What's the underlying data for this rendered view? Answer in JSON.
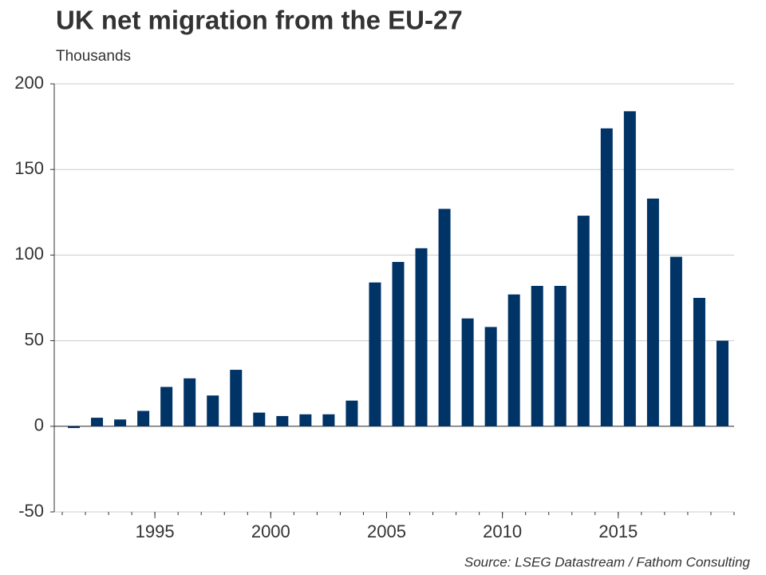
{
  "chart_data": {
    "type": "bar",
    "title": "UK net migration from the EU-27",
    "subtitle": "Thousands",
    "source": "Source: LSEG Datastream / Fathom Consulting",
    "categories": [
      null,
      null,
      null,
      null,
      "1995",
      null,
      null,
      null,
      null,
      "2000",
      null,
      null,
      null,
      null,
      "2005",
      null,
      null,
      null,
      null,
      "2010",
      null,
      null,
      null,
      null,
      "2015",
      null,
      null,
      null,
      null
    ],
    "values": [
      -1,
      5,
      4,
      9,
      23,
      28,
      18,
      33,
      8,
      6,
      7,
      7,
      15,
      84,
      96,
      104,
      127,
      63,
      58,
      77,
      82,
      82,
      123,
      174,
      184,
      133,
      99,
      75,
      50
    ],
    "color": "#003366",
    "ylim": [
      -50,
      200
    ],
    "yticks": [
      -50,
      0,
      50,
      100,
      150,
      200
    ],
    "grid": true
  }
}
